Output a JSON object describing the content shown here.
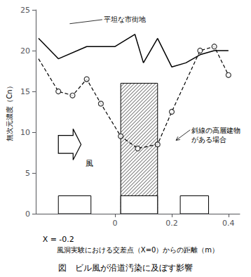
{
  "chart_data": {
    "type": "line",
    "title": "図　ビル風が沿道汚染に及ぼす影響",
    "x_label": "風洞実験における交差点（X=0）からの距離（m）",
    "y_label": "無次元濃度（Cn）",
    "xlim": [
      -0.28,
      0.44
    ],
    "ylim": [
      0,
      25
    ],
    "xticks": [
      0,
      0.2,
      0.4
    ],
    "yticks": [
      0,
      5,
      10,
      15,
      20,
      25
    ],
    "grid": false,
    "series": [
      {
        "type": "line",
        "x": [
          -0.27,
          -0.2,
          -0.1,
          0.0,
          0.07,
          0.1,
          0.15,
          0.2,
          0.25,
          0.3,
          0.35,
          0.4
        ],
        "values": [
          21.5,
          19.0,
          20.5,
          20.5,
          22.0,
          18.5,
          21.5,
          18.0,
          18.5,
          19.5,
          20.0,
          20.0
        ],
        "color": "#000000",
        "line_style": "solid"
      },
      {
        "type": "line",
        "x": [
          -0.27,
          -0.2,
          -0.15,
          -0.1,
          -0.05,
          0.02,
          0.08,
          0.15,
          0.2,
          0.3,
          0.35,
          0.4
        ],
        "values": [
          19.0,
          15.0,
          14.5,
          16.5,
          13.5,
          9.5,
          8.0,
          8.5,
          12.5,
          20.0,
          20.5,
          17.0
        ],
        "color": "#000000",
        "line_style": "dashed"
      },
      {
        "type": "scatter",
        "x": [
          -0.2,
          -0.15,
          -0.1,
          -0.05,
          0.02,
          0.08,
          0.15,
          0.2,
          0.3,
          0.35,
          0.4
        ],
        "values": [
          15.0,
          14.5,
          16.5,
          13.5,
          9.5,
          8.0,
          8.5,
          12.5,
          20.0,
          20.5,
          17.0
        ],
        "color": "#000000",
        "marker": "circle"
      }
    ],
    "hatched_building": {
      "x": 0.02,
      "width": 0.13,
      "height": 16.0
    },
    "buildings": [
      {
        "x": -0.2,
        "width": 0.115,
        "height": 2.2
      },
      {
        "x": 0.02,
        "width": 0.13,
        "height": 2.2
      },
      {
        "x": 0.23,
        "width": 0.1,
        "height": 2.2
      }
    ],
    "wind_arrow": {
      "x": -0.2,
      "y": 8.5,
      "dx": 0.08
    },
    "annotations": [
      {
        "text": "風",
        "x": -0.09,
        "y": 6.8
      },
      {
        "text": "平坦な市街地",
        "x": -0.04,
        "y": 23.8,
        "line_to": [
          -0.16,
          23.3
        ]
      },
      {
        "text": "斜線の高層建物\nがある場合",
        "x": 0.27,
        "y": 10.8,
        "arrow_to": [
          0.215,
          9.0
        ]
      },
      {
        "text": "X = -0.2",
        "x": -0.2,
        "y": -2.5
      }
    ]
  }
}
